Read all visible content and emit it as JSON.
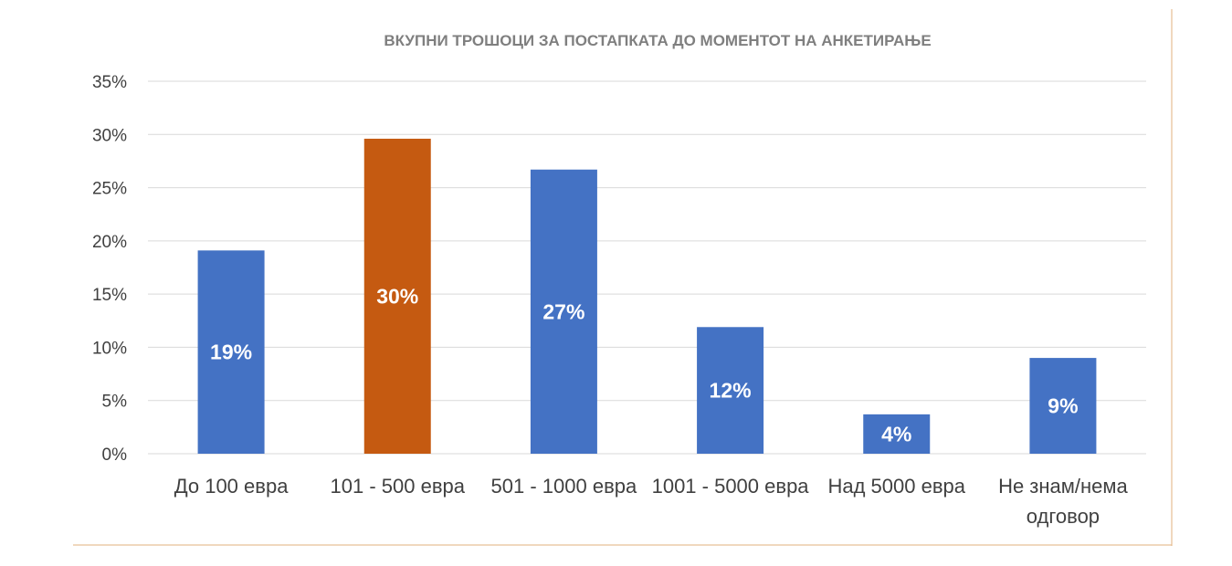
{
  "chart_data": {
    "type": "bar",
    "title": "ВКУПНИ ТРОШОЦИ ЗА ПОСТАПКАТА ДО МОМЕНТОТ НА АНКЕТИРАЊЕ",
    "categories": [
      [
        "До 100 евра"
      ],
      [
        "101 - 500 евра"
      ],
      [
        "501 - 1000 евра"
      ],
      [
        "1001 - 5000 евра"
      ],
      [
        "Над 5000 евра"
      ],
      [
        "Не знам/нема",
        "одговор"
      ]
    ],
    "values": [
      19.1,
      29.6,
      26.7,
      11.9,
      3.7,
      9.0
    ],
    "data_labels": [
      "19%",
      "30%",
      "27%",
      "12%",
      "4%",
      "9%"
    ],
    "y_ticks": [
      "0%",
      "5%",
      "10%",
      "15%",
      "20%",
      "25%",
      "30%",
      "35%"
    ],
    "ylim": [
      0,
      35
    ],
    "grid": true,
    "legend": "none",
    "colors": {
      "default": "#4472c4",
      "highlight": "#c55a11",
      "highlight_index": 1,
      "grid": "#d9d9d9",
      "frame": "#e2b07e"
    }
  }
}
